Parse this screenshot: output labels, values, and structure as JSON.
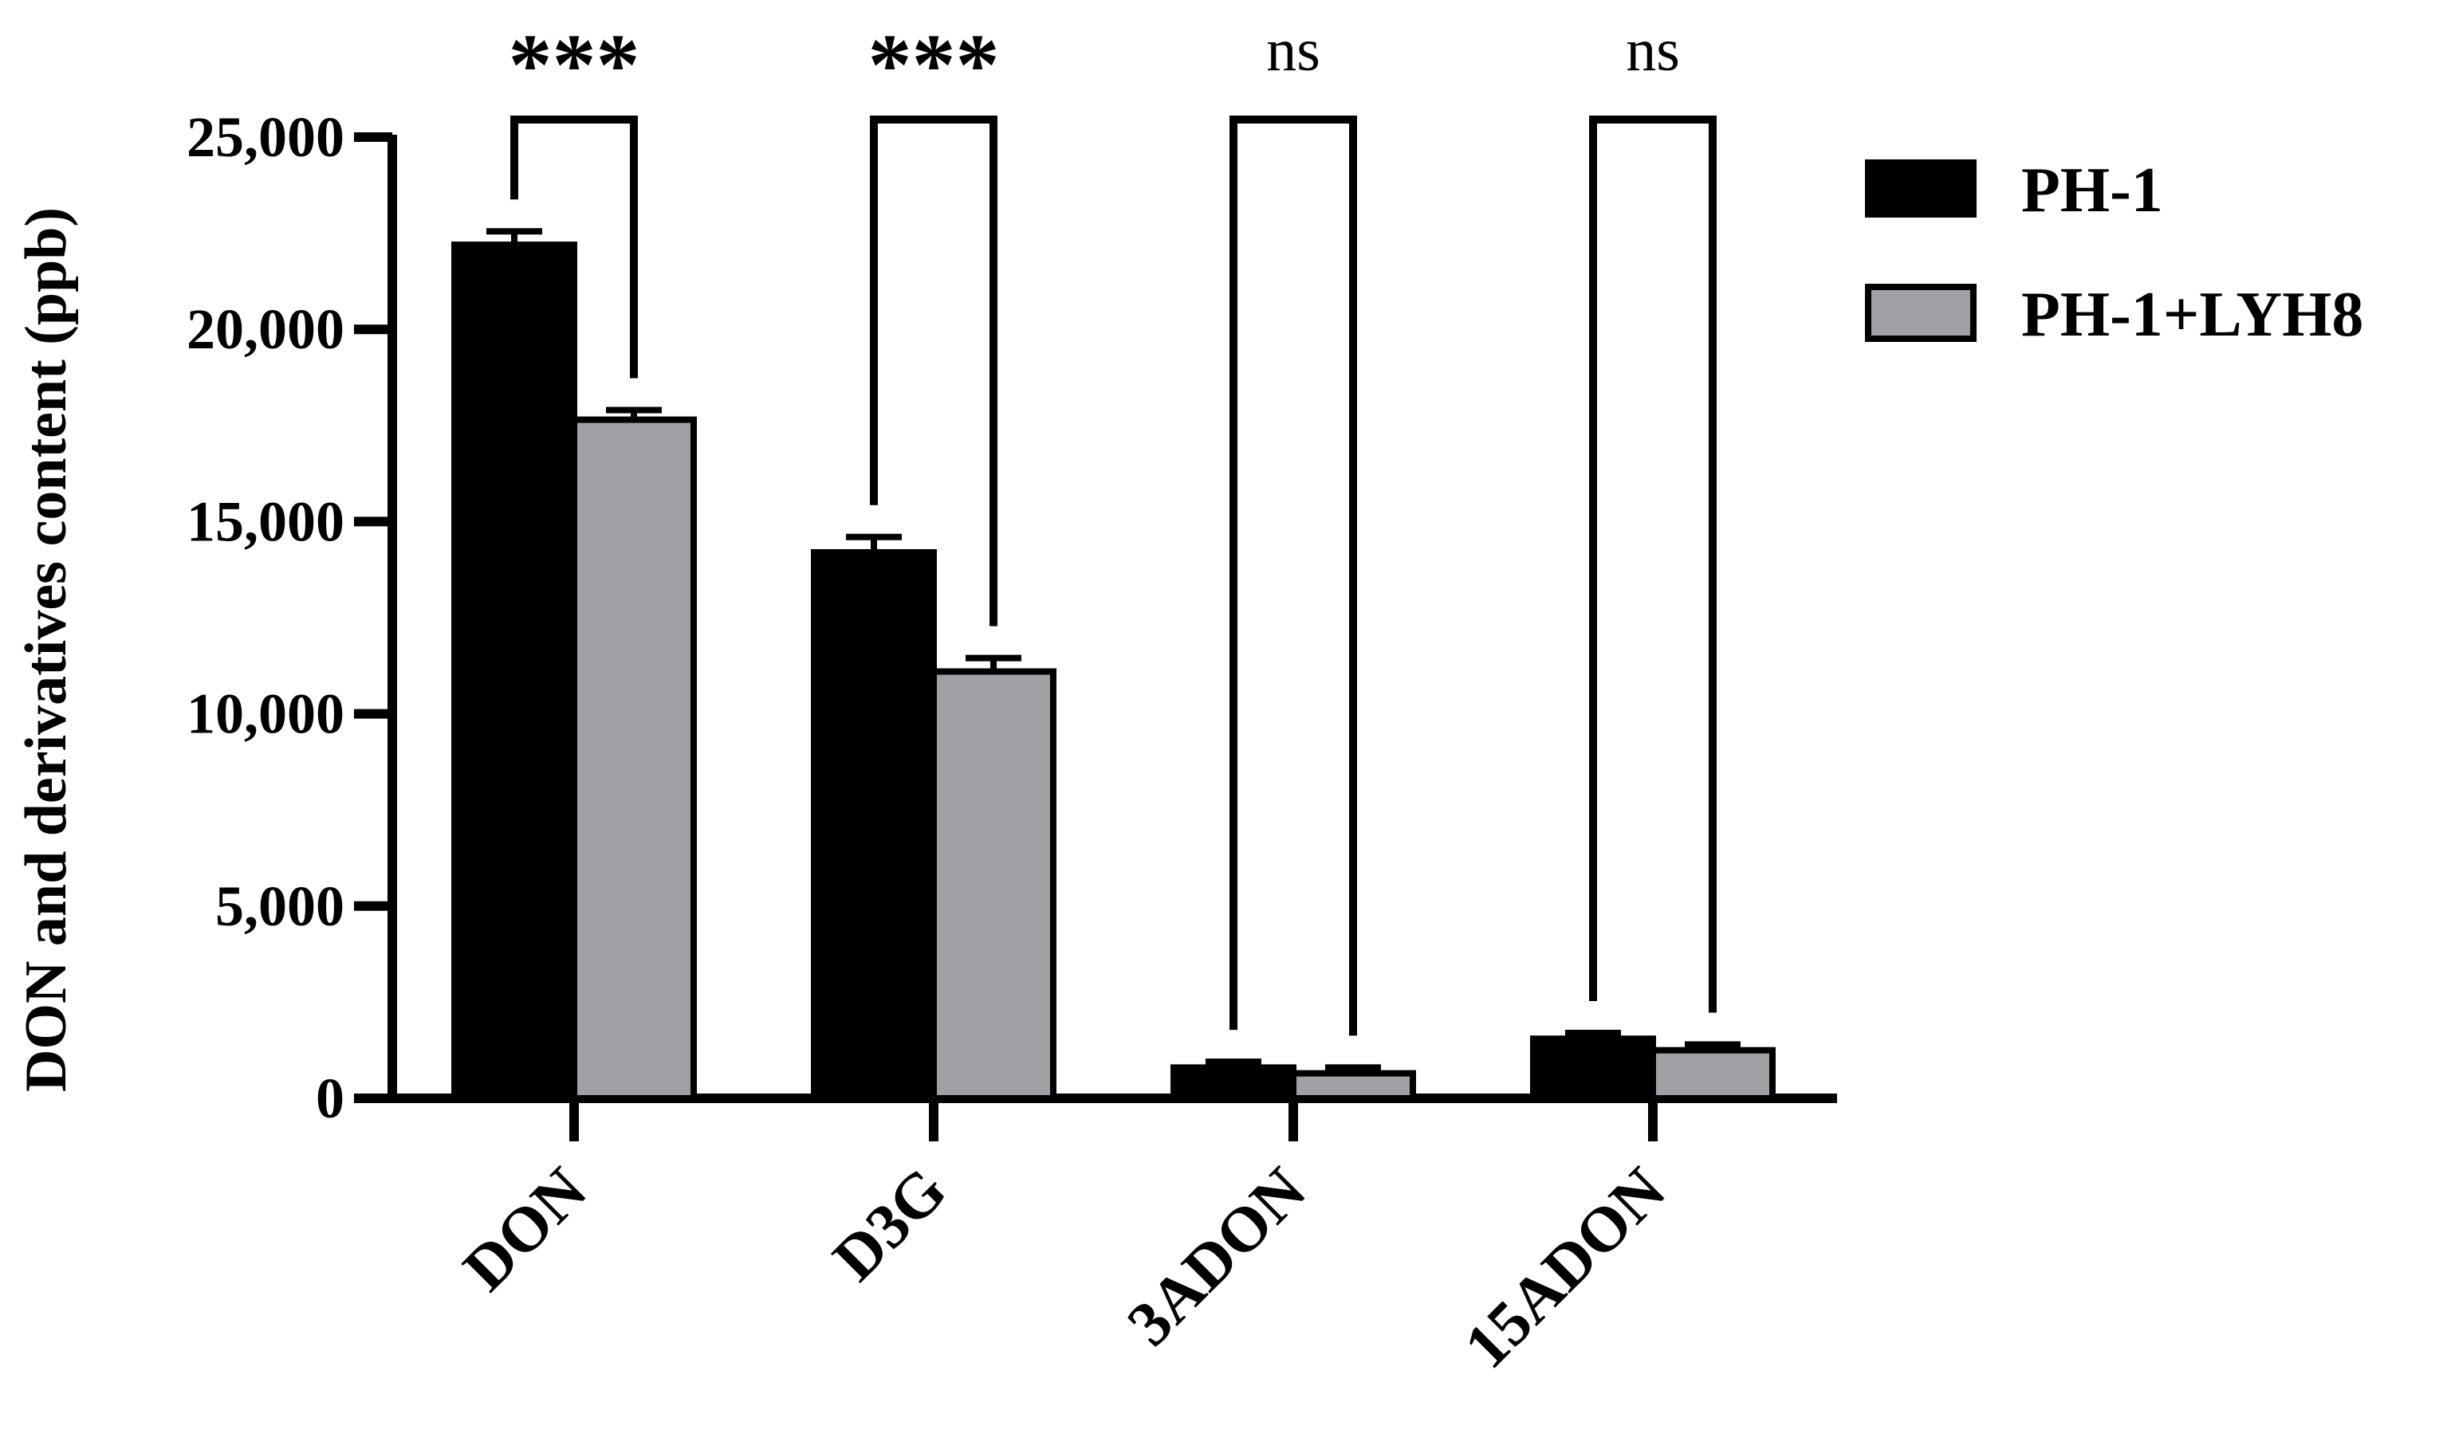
{
  "chart_data": {
    "type": "bar",
    "ylabel": "DON and derivatives content (ppb)",
    "xlabel": "",
    "categories": [
      "DON",
      "D3G",
      "3ADON",
      "15ADON"
    ],
    "ylim": [
      0,
      25000
    ],
    "yticks": [
      0,
      5000,
      10000,
      15000,
      20000,
      25000
    ],
    "ytick_labels": [
      "0",
      "5,000",
      "10,000",
      "15,000",
      "20,000",
      "25,000"
    ],
    "series": [
      {
        "name": "PH-1",
        "color": "#000000",
        "values": [
          22200,
          14200,
          800,
          1550
        ],
        "errors": [
          350,
          400,
          150,
          150
        ]
      },
      {
        "name": "PH-1+LYH8",
        "color": "#a0a0a4",
        "values": [
          17650,
          11100,
          650,
          1250
        ],
        "errors": [
          250,
          350,
          150,
          150
        ]
      }
    ],
    "significance": [
      "***",
      "***",
      "ns",
      "ns"
    ],
    "legend_position": "right",
    "grid": false
  }
}
